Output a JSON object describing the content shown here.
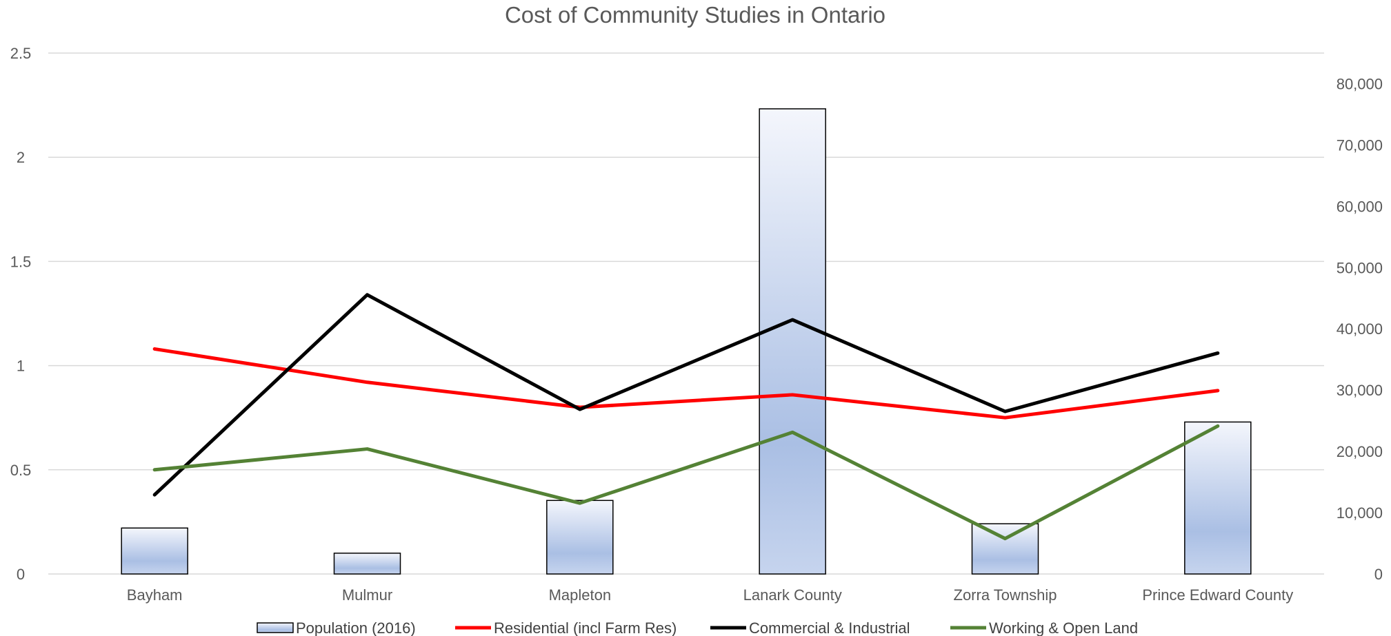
{
  "chart_data": {
    "type": "bar+line",
    "title": "Cost of Community Studies in Ontario",
    "categories": [
      "Bayham",
      "Mulmur",
      "Mapleton",
      "Lanark County",
      "Zorra Township",
      "Prince Edward County"
    ],
    "left_axis": {
      "min": 0,
      "max": 2.5,
      "ticks": [
        0,
        0.5,
        1,
        1.5,
        2,
        2.5
      ],
      "tick_labels": [
        "0",
        "0.5",
        "1",
        "1.5",
        "2",
        "2.5"
      ]
    },
    "right_axis": {
      "min": 0,
      "max": 85000,
      "ticks": [
        0,
        10000,
        20000,
        30000,
        40000,
        50000,
        60000,
        70000,
        80000
      ],
      "tick_labels": [
        "0",
        "10,000",
        "20,000",
        "30,000",
        "40,000",
        "50,000",
        "60,000",
        "70,000",
        "80,000"
      ]
    },
    "grid": true,
    "legend_position": "bottom",
    "bars": {
      "name": "Population (2016)",
      "axis": "right",
      "values": [
        7500,
        3400,
        12000,
        75900,
        8200,
        24800
      ]
    },
    "series": [
      {
        "name": "Residential (incl Farm Res)",
        "color": "#ff0000",
        "axis": "left",
        "values": [
          1.08,
          0.92,
          0.8,
          0.86,
          0.75,
          0.88
        ]
      },
      {
        "name": "Commercial & Industrial",
        "color": "#000000",
        "axis": "left",
        "values": [
          0.38,
          1.34,
          0.79,
          1.22,
          0.78,
          1.06
        ]
      },
      {
        "name": "Working & Open Land",
        "color": "#548235",
        "axis": "left",
        "values": [
          0.5,
          0.6,
          0.34,
          0.68,
          0.17,
          0.71
        ]
      }
    ]
  }
}
